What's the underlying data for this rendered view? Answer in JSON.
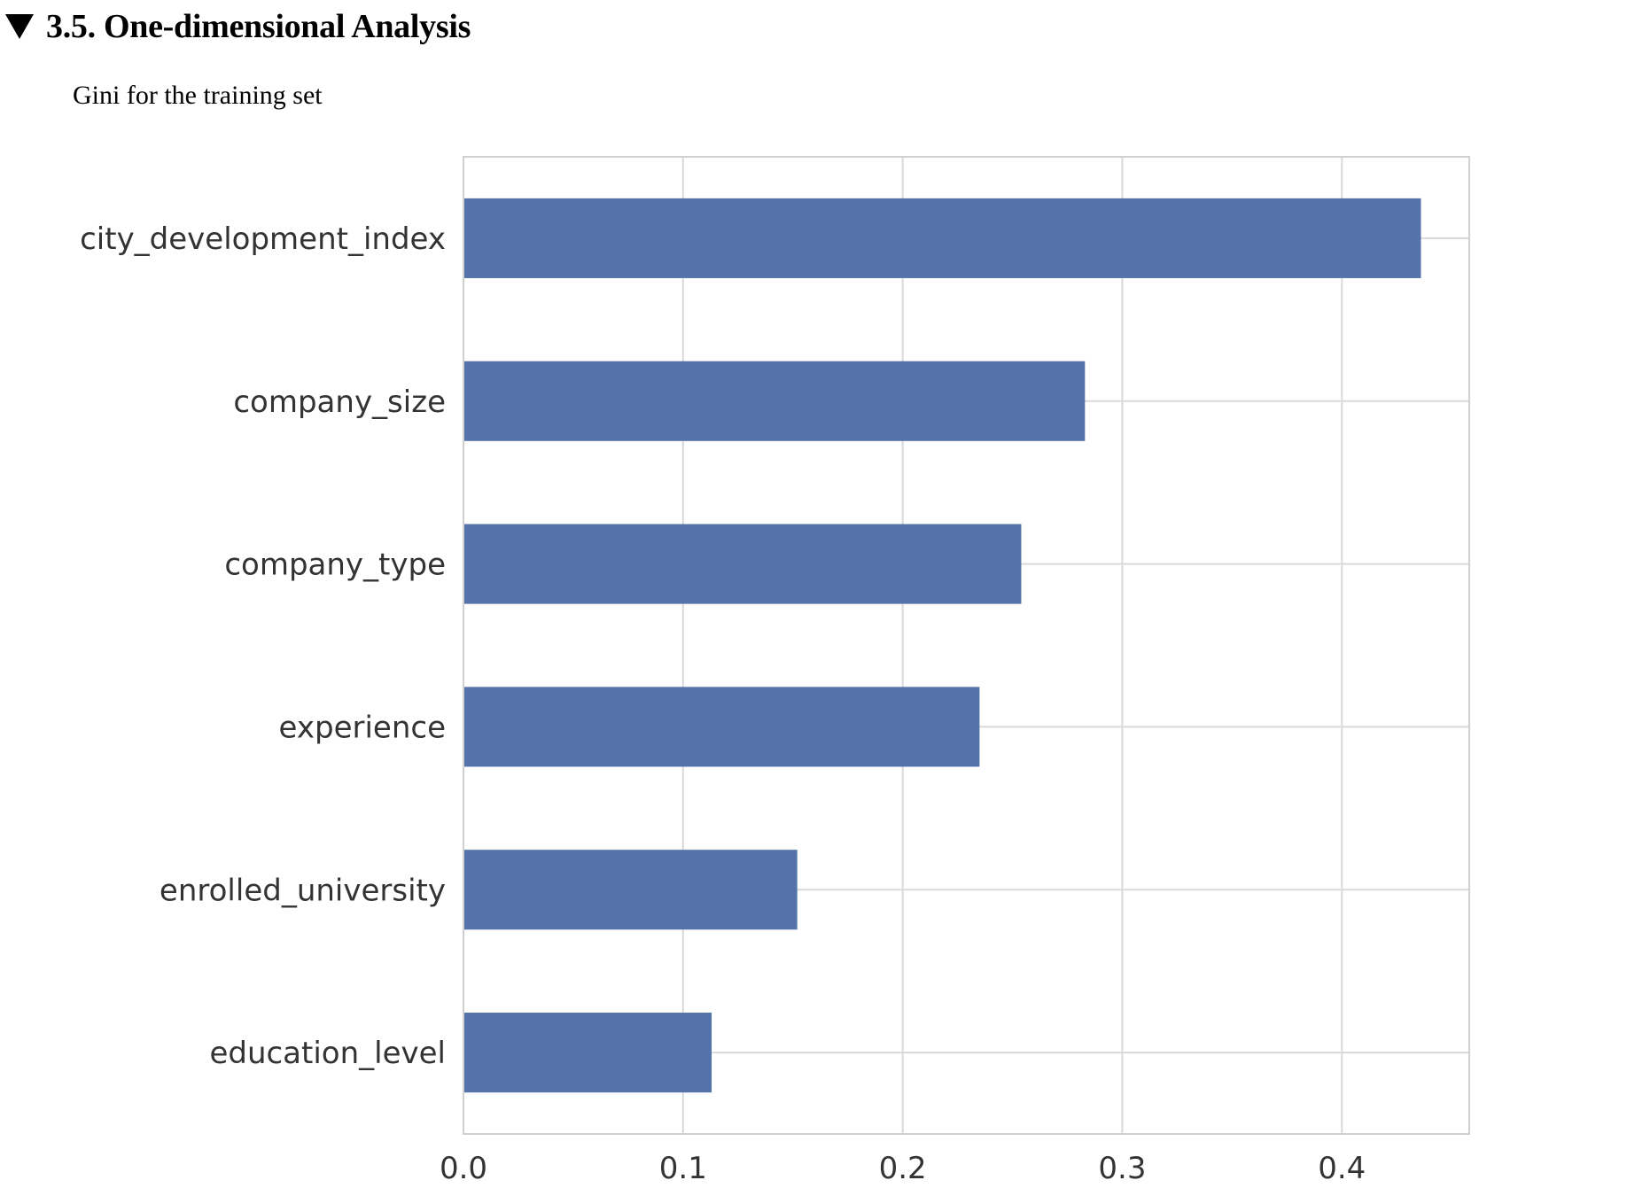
{
  "section": {
    "toggle_icon": "disclosure-triangle-down-icon",
    "title": "3.5. One-dimensional Analysis"
  },
  "subtitle": "Gini for the training set",
  "colors": {
    "bar": "#5573AB",
    "grid": "#d9d9d9",
    "frame": "#d0d0d0",
    "text": "#333333"
  },
  "chart_data": {
    "type": "bar",
    "orientation": "horizontal",
    "categories": [
      "city_development_index",
      "company_size",
      "company_type",
      "experience",
      "enrolled_university",
      "education_level"
    ],
    "values": [
      0.436,
      0.283,
      0.254,
      0.235,
      0.152,
      0.113
    ],
    "xlim": [
      0.0,
      0.458
    ],
    "xticks": [
      "0.0",
      "0.1",
      "0.2",
      "0.3",
      "0.4"
    ],
    "title": "",
    "xlabel": "",
    "ylabel": "",
    "grid": true,
    "legend": "none"
  }
}
